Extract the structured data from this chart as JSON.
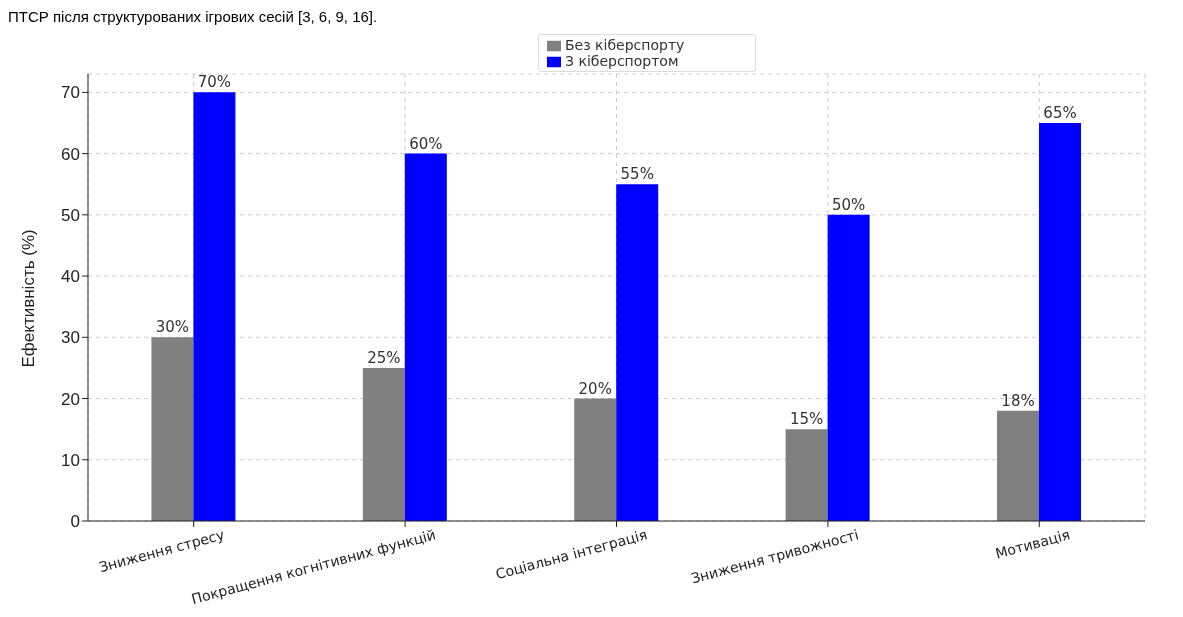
{
  "chart_data": {
    "type": "bar",
    "ylabel": "Ефективність (%)",
    "annotations": [
      "ПТСР після структурованих ігрових сесій [3, 6, 9, 16]."
    ],
    "categories": [
      "Зниження стресу",
      "Покращення когнітивних функцій",
      "Соціальна інтеграція",
      "Зниження тривожності",
      "Мотивація"
    ],
    "series": [
      {
        "name": "Без кіберспорту",
        "color": "#808080",
        "values": [
          30,
          25,
          20,
          15,
          18
        ],
        "value_labels": [
          "30%",
          "25%",
          "20%",
          "15%",
          "18%"
        ]
      },
      {
        "name": "З кіберспортом",
        "color": "#0000ff",
        "values": [
          70,
          60,
          55,
          50,
          65
        ],
        "value_labels": [
          "70%",
          "60%",
          "55%",
          "50%",
          "65%"
        ]
      }
    ],
    "ylim": [
      0,
      73
    ],
    "yticks": [
      0,
      10,
      20,
      30,
      40,
      50,
      60,
      70
    ],
    "grid": true,
    "legend": "top"
  }
}
